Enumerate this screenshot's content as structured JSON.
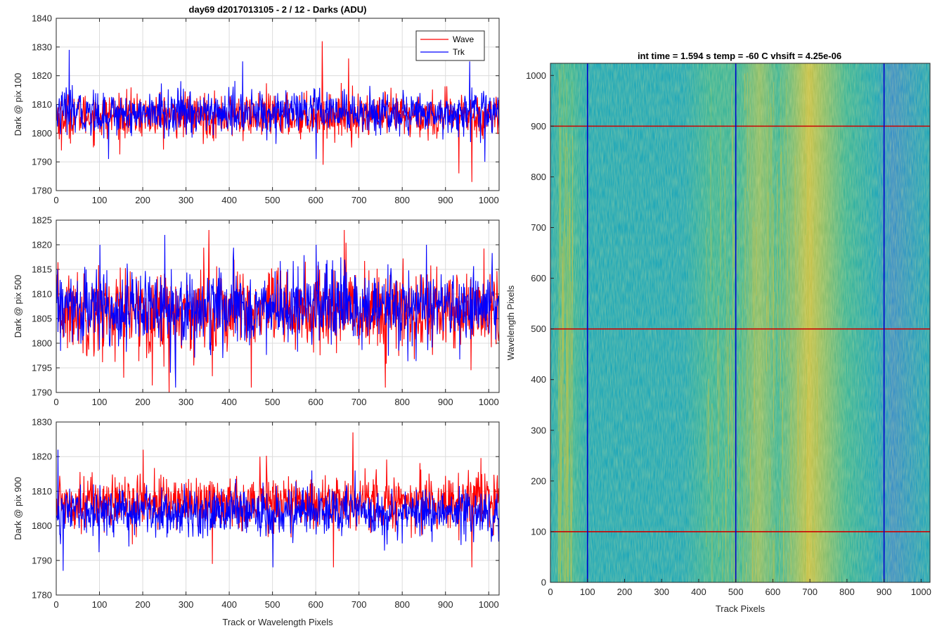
{
  "figure": {
    "title_left": "day69 d2017013105 - 2 / 12 - Darks (ADU)",
    "title_right": "int time = 1.594 s   temp = -60 C   vhsift = 4.25e-06"
  },
  "chart_data": [
    {
      "type": "line",
      "title": "day69 d2017013105 - 2 / 12 - Darks (ADU)",
      "xlabel": "",
      "ylabel": "Dark @ pix 100",
      "xlim": [
        0,
        1024
      ],
      "ylim": [
        1780,
        1840
      ],
      "xticks": [
        0,
        100,
        200,
        300,
        400,
        500,
        600,
        700,
        800,
        900,
        1000
      ],
      "yticks": [
        1780,
        1790,
        1800,
        1810,
        1820,
        1830,
        1840
      ],
      "grid": true,
      "legend": {
        "placement": "top-right",
        "entries": [
          "Wave",
          "Trk"
        ]
      },
      "series": [
        {
          "name": "Wave",
          "color": "#ff0000",
          "n_points": 1024,
          "mean": 1806,
          "std": 4.5,
          "min": 1783,
          "max": 1832,
          "spikes": [
            [
              614,
              1832
            ],
            [
              616,
              1789
            ],
            [
              930,
              1786
            ],
            [
              960,
              1783
            ],
            [
              675,
              1826
            ],
            [
              11,
              1794
            ]
          ]
        },
        {
          "name": "Trk",
          "color": "#0000ff",
          "n_points": 1024,
          "mean": 1807,
          "std": 4.5,
          "min": 1788,
          "max": 1829,
          "spikes": [
            [
              29,
              1829
            ],
            [
              430,
              1825
            ],
            [
              120,
              1791
            ],
            [
              990,
              1790
            ],
            [
              955,
              1825
            ],
            [
              600,
              1791
            ]
          ]
        }
      ]
    },
    {
      "type": "line",
      "xlabel": "",
      "ylabel": "Dark @ pix 500",
      "xlim": [
        0,
        1024
      ],
      "ylim": [
        1790,
        1825
      ],
      "xticks": [
        0,
        100,
        200,
        300,
        400,
        500,
        600,
        700,
        800,
        900,
        1000
      ],
      "yticks": [
        1790,
        1795,
        1800,
        1805,
        1810,
        1815,
        1820,
        1825
      ],
      "grid": true,
      "series": [
        {
          "name": "Wave",
          "color": "#ff0000",
          "n_points": 1024,
          "mean": 1806.5,
          "std": 5,
          "min": 1790,
          "max": 1823,
          "spikes": [
            [
              665,
              1823
            ],
            [
              260,
              1790
            ],
            [
              352,
              1823
            ],
            [
              450,
              1791
            ],
            [
              760,
              1791
            ],
            [
              155,
              1793
            ]
          ]
        },
        {
          "name": "Trk",
          "color": "#0000ff",
          "n_points": 1024,
          "mean": 1807,
          "std": 4.5,
          "min": 1791,
          "max": 1822,
          "spikes": [
            [
              250,
              1822
            ],
            [
              275,
              1791
            ],
            [
              600,
              1820
            ],
            [
              855,
              1820
            ],
            [
              100,
              1820
            ]
          ]
        }
      ]
    },
    {
      "type": "line",
      "xlabel": "Track or Wavelength Pixels",
      "ylabel": "Dark @ pix 900",
      "xlim": [
        0,
        1024
      ],
      "ylim": [
        1780,
        1830
      ],
      "xticks": [
        0,
        100,
        200,
        300,
        400,
        500,
        600,
        700,
        800,
        900,
        1000
      ],
      "yticks": [
        1780,
        1790,
        1800,
        1810,
        1820,
        1830
      ],
      "grid": true,
      "series": [
        {
          "name": "Wave",
          "color": "#ff0000",
          "n_points": 1024,
          "mean": 1807,
          "std": 4.5,
          "min": 1788,
          "max": 1827,
          "spikes": [
            [
              685,
              1827
            ],
            [
              360,
              1789
            ],
            [
              200,
              1822
            ],
            [
              640,
              1788
            ],
            [
              960,
              1788
            ],
            [
              470,
              1820
            ]
          ]
        },
        {
          "name": "Trk",
          "color": "#0000ff",
          "n_points": 1024,
          "mean": 1804,
          "std": 4,
          "min": 1787,
          "max": 1822,
          "spikes": [
            [
              3,
              1822
            ],
            [
              15,
              1787
            ],
            [
              500,
              1788
            ],
            [
              590,
              1816
            ],
            [
              690,
              1816
            ]
          ]
        }
      ]
    },
    {
      "type": "heatmap",
      "title": "int time = 1.594 s   temp = -60 C   vhsift = 4.25e-06",
      "xlabel": "Track Pixels",
      "ylabel": "Wavelength Pixels",
      "xlim": [
        0,
        1024
      ],
      "ylim": [
        0,
        1024
      ],
      "xticks": [
        0,
        100,
        200,
        300,
        400,
        500,
        600,
        700,
        800,
        900,
        1000
      ],
      "yticks": [
        0,
        100,
        200,
        300,
        400,
        500,
        600,
        700,
        800,
        900,
        1000
      ],
      "colormap": "parula",
      "colormap_colors": [
        "#3a8fc8",
        "#21a8b8",
        "#3cb59a",
        "#8fbe6a",
        "#c8c14a"
      ],
      "bright_bands_x": [
        [
          20,
          60
        ],
        [
          420,
          560
        ],
        [
          580,
          720
        ]
      ],
      "dim_bands_x": [
        [
          900,
          1024
        ]
      ],
      "hlines": {
        "color": "#cc0000",
        "y": [
          100,
          500,
          900
        ]
      },
      "vlines": {
        "color": "#0000cc",
        "x": [
          100,
          500,
          900
        ]
      }
    }
  ]
}
